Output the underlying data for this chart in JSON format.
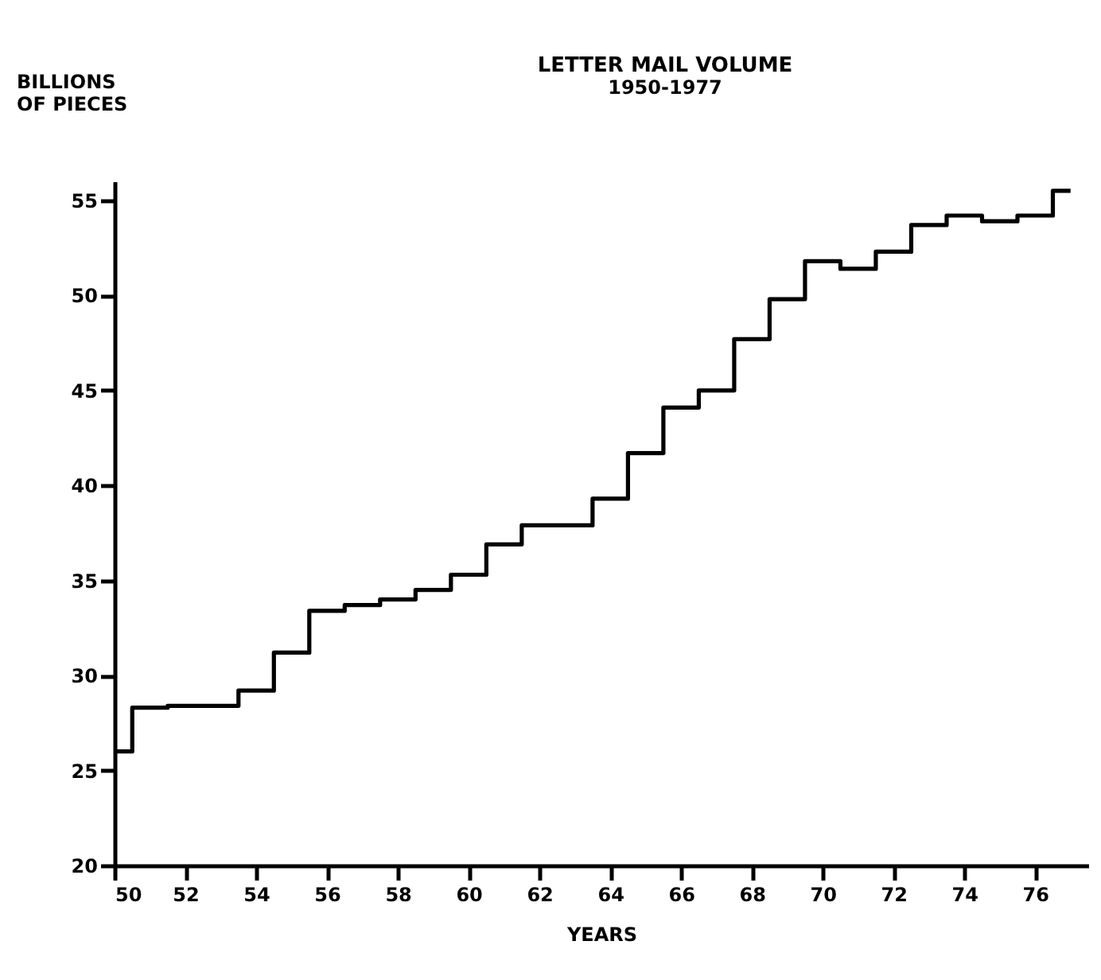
{
  "chart_data": {
    "type": "step",
    "title": "LETTER MAIL VOLUME",
    "subtitle": "1950-1977",
    "xlabel": "YEARS",
    "ylabel": "BILLIONS\nOF PIECES",
    "x": [
      1950,
      1951,
      1952,
      1953,
      1954,
      1955,
      1956,
      1957,
      1958,
      1959,
      1960,
      1961,
      1962,
      1963,
      1964,
      1965,
      1966,
      1967,
      1968,
      1969,
      1970,
      1971,
      1972,
      1973,
      1974,
      1975,
      1976,
      1977
    ],
    "series": [
      {
        "color": "#000000",
        "values": [
          26.0,
          28.3,
          28.4,
          28.4,
          29.2,
          31.2,
          33.4,
          33.7,
          34.0,
          34.5,
          35.3,
          36.9,
          37.9,
          37.9,
          39.3,
          41.7,
          44.1,
          45.0,
          47.7,
          49.8,
          51.8,
          51.4,
          52.3,
          53.7,
          54.2,
          53.9,
          54.2,
          55.5
        ]
      }
    ],
    "xlim": [
      1950,
      1977.5
    ],
    "xticks": [
      {
        "value": 1950,
        "label": "50"
      },
      {
        "value": 1952,
        "label": "52"
      },
      {
        "value": 1954,
        "label": "54"
      },
      {
        "value": 1956,
        "label": "56"
      },
      {
        "value": 1958,
        "label": "58"
      },
      {
        "value": 1960,
        "label": "60"
      },
      {
        "value": 1962,
        "label": "62"
      },
      {
        "value": 1964,
        "label": "64"
      },
      {
        "value": 1966,
        "label": "66"
      },
      {
        "value": 1968,
        "label": "68"
      },
      {
        "value": 1970,
        "label": "70"
      },
      {
        "value": 1972,
        "label": "72"
      },
      {
        "value": 1974,
        "label": "74"
      },
      {
        "value": 1976,
        "label": "76"
      }
    ],
    "ylim": [
      20,
      56
    ],
    "yticks": [
      20,
      25,
      30,
      35,
      40,
      45,
      50,
      55
    ],
    "grid": false,
    "line_style": "solid"
  }
}
